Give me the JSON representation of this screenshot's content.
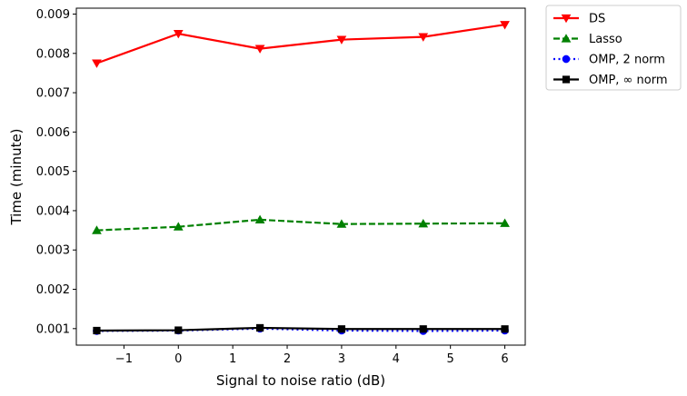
{
  "chart_data": {
    "type": "line",
    "title": "",
    "xlabel": "Signal to noise ratio (dB)",
    "ylabel": "Time (minute)",
    "xlim": [
      -1.875,
      6.375
    ],
    "ylim": [
      0.00058,
      0.00915
    ],
    "x_ticks": [
      -1,
      0,
      1,
      2,
      3,
      4,
      5,
      6
    ],
    "x_tick_labels": [
      "−1",
      "0",
      "1",
      "2",
      "3",
      "4",
      "5",
      "6"
    ],
    "y_ticks": [
      0.001,
      0.002,
      0.003,
      0.004,
      0.005,
      0.006,
      0.007,
      0.008,
      0.009
    ],
    "y_tick_labels": [
      "0.001",
      "0.002",
      "0.003",
      "0.004",
      "0.005",
      "0.006",
      "0.007",
      "0.008",
      "0.009"
    ],
    "grid": false,
    "legend_position": "outside-top-right",
    "x": [
      -1.5,
      0,
      1.5,
      3,
      4.5,
      6
    ],
    "series": [
      {
        "name": "DS",
        "values": [
          0.00775,
          0.0085,
          0.00812,
          0.00835,
          0.00842,
          0.00873
        ],
        "color": "#ff0000",
        "line_style": "solid",
        "marker": "triangle-down"
      },
      {
        "name": "Lasso",
        "values": [
          0.0035,
          0.00359,
          0.00377,
          0.00366,
          0.00367,
          0.00368
        ],
        "color": "#008000",
        "line_style": "dashed",
        "marker": "triangle-up"
      },
      {
        "name": "OMP, 2 norm",
        "values": [
          0.00094,
          0.00095,
          0.001,
          0.00095,
          0.00094,
          0.00095
        ],
        "color": "#0000ff",
        "line_style": "dotted",
        "marker": "circle"
      },
      {
        "name": "OMP, ∞ norm",
        "values": [
          0.00095,
          0.00096,
          0.00102,
          0.00099,
          0.00099,
          0.00099
        ],
        "color": "#000000",
        "line_style": "solid",
        "marker": "square"
      }
    ]
  }
}
